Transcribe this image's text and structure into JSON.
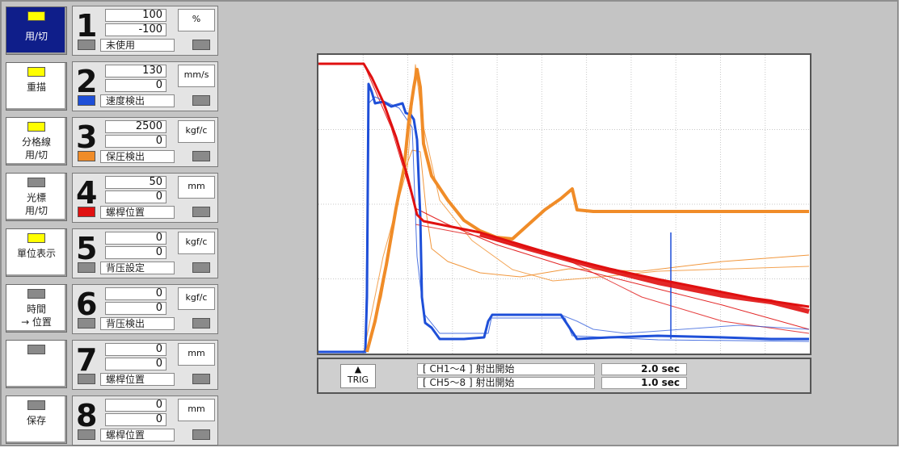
{
  "buttons": [
    {
      "label": "用/切",
      "lamp": "on",
      "active": true
    },
    {
      "label": "重描",
      "lamp": "on",
      "active": false
    },
    {
      "label": "分格線\n用/切",
      "lamp": "on",
      "active": false
    },
    {
      "label": "光標\n用/切",
      "lamp": "off",
      "active": false
    },
    {
      "label": "單位表示",
      "lamp": "on",
      "active": false
    },
    {
      "label": "時間\n→ 位置",
      "lamp": "off",
      "active": false
    },
    {
      "label": "",
      "lamp": "off",
      "active": false
    },
    {
      "label": "保存",
      "lamp": "off",
      "active": false
    }
  ],
  "channels": [
    {
      "num": "1",
      "max": "100",
      "min": "-100",
      "unit": "%",
      "name": "未使用",
      "color": "#8a8a8a"
    },
    {
      "num": "2",
      "max": "130",
      "min": "0",
      "unit": "mm/s",
      "name": "速度検出",
      "color": "#1e4fd8"
    },
    {
      "num": "3",
      "max": "2500",
      "min": "0",
      "unit": "kgf/c",
      "name": "保圧検出",
      "color": "#f08c28"
    },
    {
      "num": "4",
      "max": "50",
      "min": "0",
      "unit": "mm",
      "name": "螺桿位置",
      "color": "#e01010"
    },
    {
      "num": "5",
      "max": "0",
      "min": "0",
      "unit": "kgf/c",
      "name": "背压設定",
      "color": "#8a8a8a"
    },
    {
      "num": "6",
      "max": "0",
      "min": "0",
      "unit": "kgf/c",
      "name": "背压検出",
      "color": "#8a8a8a"
    },
    {
      "num": "7",
      "max": "0",
      "min": "0",
      "unit": "mm",
      "name": "螺桿位置",
      "color": "#8a8a8a"
    },
    {
      "num": "8",
      "max": "0",
      "min": "0",
      "unit": "mm",
      "name": "螺桿位置",
      "color": "#8a8a8a"
    }
  ],
  "status": {
    "trig_icon": "▲",
    "trig_label": "TRIG",
    "ch_a": "[ CH1～4 ] 射出開始",
    "ch_b": "[ CH5～8 ] 射出開始",
    "sec_a": "2.0 sec",
    "sec_b": "1.0 sec"
  },
  "chart_data": {
    "type": "line",
    "grid": true,
    "x_divisions": 11,
    "y_divisions": 4,
    "series": [
      {
        "name": "速度検出",
        "color": "#1e4fd8"
      },
      {
        "name": "保圧検出",
        "color": "#f08c28"
      },
      {
        "name": "螺桿位置",
        "color": "#e01010"
      }
    ]
  }
}
